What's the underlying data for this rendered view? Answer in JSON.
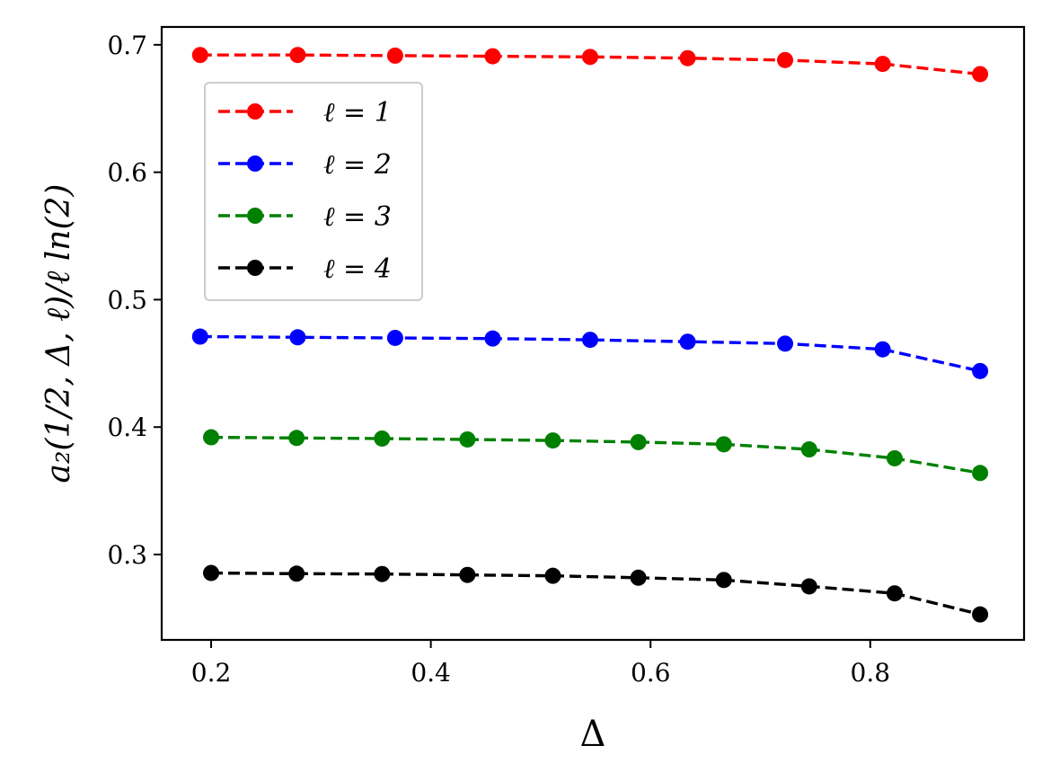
{
  "chart_data": {
    "type": "line",
    "xlabel": "Δ",
    "ylabel": "a₂(1/2, Δ, ℓ)/ℓ ln(2)",
    "xlim": [
      0.155,
      0.94
    ],
    "ylim": [
      0.233,
      0.714
    ],
    "x_ticks": [
      0.2,
      0.4,
      0.6,
      0.8
    ],
    "x_tick_labels": [
      "0.2",
      "0.4",
      "0.6",
      "0.8"
    ],
    "y_ticks": [
      0.3,
      0.4,
      0.5,
      0.6,
      0.7
    ],
    "y_tick_labels": [
      "0.3",
      "0.4",
      "0.5",
      "0.6",
      "0.7"
    ],
    "grid": false,
    "legend_position": "upper-left",
    "series": [
      {
        "name": "ℓ = 1",
        "color": "#ff0000",
        "x": [
          0.19,
          0.2788,
          0.3675,
          0.4563,
          0.545,
          0.6338,
          0.7225,
          0.8113,
          0.9
        ],
        "y": [
          0.692,
          0.692,
          0.6915,
          0.691,
          0.6905,
          0.6895,
          0.688,
          0.685,
          0.677
        ]
      },
      {
        "name": "ℓ = 2",
        "color": "#0000ff",
        "x": [
          0.19,
          0.2788,
          0.3675,
          0.4563,
          0.545,
          0.6338,
          0.7225,
          0.8113,
          0.9
        ],
        "y": [
          0.471,
          0.4705,
          0.47,
          0.4695,
          0.4685,
          0.467,
          0.4655,
          0.461,
          0.444
        ]
      },
      {
        "name": "ℓ = 3",
        "color": "#008000",
        "x": [
          0.2,
          0.2778,
          0.3556,
          0.4333,
          0.5111,
          0.5889,
          0.6667,
          0.7444,
          0.8222,
          0.9
        ],
        "y": [
          0.392,
          0.3915,
          0.391,
          0.3903,
          0.3895,
          0.3882,
          0.3865,
          0.3825,
          0.3755,
          0.364
        ]
      },
      {
        "name": "ℓ = 4",
        "color": "#000000",
        "x": [
          0.2,
          0.2778,
          0.3556,
          0.4333,
          0.5111,
          0.5889,
          0.6667,
          0.7444,
          0.8222,
          0.9
        ],
        "y": [
          0.2855,
          0.285,
          0.2847,
          0.284,
          0.2833,
          0.2818,
          0.28,
          0.275,
          0.2695,
          0.253
        ]
      }
    ]
  }
}
